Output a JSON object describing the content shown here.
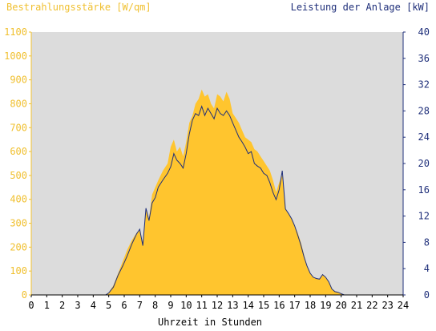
{
  "chart_data": {
    "type": "area",
    "ylabel_left": "Bestrahlungsstärke [W/qm]",
    "ylabel_right": "Leistung der Anlage [kW]",
    "xlabel": "Uhrzeit in Stunden",
    "xlim": [
      0,
      24
    ],
    "ylim_left": [
      0,
      1100
    ],
    "ylim_right": [
      0,
      40
    ],
    "x_ticks": [
      "0",
      "1",
      "2",
      "3",
      "4",
      "5",
      "6",
      "7",
      "8",
      "9",
      "10",
      "11",
      "12",
      "13",
      "14",
      "15",
      "16",
      "17",
      "18",
      "19",
      "20",
      "21",
      "22",
      "23",
      "24"
    ],
    "y_ticks_left": [
      "0",
      "100",
      "200",
      "300",
      "400",
      "500",
      "600",
      "700",
      "800",
      "900",
      "1000",
      "1100"
    ],
    "y_ticks_right": [
      "0",
      "4",
      "8",
      "12",
      "16",
      "20",
      "24",
      "28",
      "32",
      "36",
      "40"
    ],
    "grid": false,
    "colors": {
      "irradiance": "#ffc52e",
      "power": "#1f2f7a",
      "plot_bg": "#dcdcdc",
      "left_axis": "#f0c030",
      "right_axis": "#1f2f7a"
    },
    "series": [
      {
        "name": "Bestrahlungsstärke [W/qm]",
        "x": [
          0,
          4.8,
          5.0,
          5.3,
          5.6,
          5.9,
          6.2,
          6.5,
          6.8,
          7.0,
          7.2,
          7.4,
          7.6,
          7.8,
          8.0,
          8.2,
          8.5,
          8.8,
          9.0,
          9.2,
          9.4,
          9.6,
          9.8,
          10.0,
          10.2,
          10.4,
          10.6,
          10.8,
          11.0,
          11.2,
          11.4,
          11.6,
          11.8,
          12.0,
          12.2,
          12.4,
          12.6,
          12.8,
          13.0,
          13.2,
          13.4,
          13.6,
          13.8,
          14.0,
          14.2,
          14.4,
          14.6,
          14.8,
          15.0,
          15.2,
          15.4,
          15.6,
          15.8,
          16.0,
          16.2,
          16.4,
          16.6,
          16.8,
          17.0,
          17.2,
          17.4,
          17.6,
          17.8,
          18.0,
          18.2,
          18.4,
          18.6,
          18.8,
          19.0,
          19.2,
          19.4,
          19.6,
          19.8,
          20.0,
          20.2,
          20.4,
          20.6,
          24
        ],
        "values": [
          0,
          0,
          10,
          40,
          90,
          140,
          190,
          230,
          260,
          270,
          220,
          360,
          320,
          420,
          450,
          480,
          520,
          550,
          620,
          650,
          600,
          620,
          580,
          640,
          720,
          750,
          800,
          820,
          860,
          830,
          840,
          800,
          780,
          840,
          830,
          810,
          850,
          820,
          760,
          740,
          720,
          690,
          660,
          650,
          640,
          610,
          600,
          580,
          560,
          540,
          520,
          480,
          430,
          470,
          500,
          360,
          340,
          320,
          290,
          260,
          220,
          170,
          120,
          90,
          75,
          70,
          65,
          85,
          75,
          55,
          25,
          15,
          10,
          5,
          0,
          0,
          0,
          0
        ]
      },
      {
        "name": "Leistung der Anlage [kW]",
        "x": [
          0,
          4.8,
          5.0,
          5.3,
          5.6,
          5.9,
          6.2,
          6.5,
          6.8,
          7.0,
          7.2,
          7.4,
          7.6,
          7.8,
          8.0,
          8.2,
          8.5,
          8.8,
          9.0,
          9.2,
          9.4,
          9.6,
          9.8,
          10.0,
          10.2,
          10.4,
          10.6,
          10.8,
          11.0,
          11.2,
          11.4,
          11.6,
          11.8,
          12.0,
          12.2,
          12.4,
          12.6,
          12.8,
          13.0,
          13.2,
          13.4,
          13.6,
          13.8,
          14.0,
          14.2,
          14.4,
          14.6,
          14.8,
          15.0,
          15.2,
          15.4,
          15.6,
          15.8,
          16.0,
          16.2,
          16.4,
          16.6,
          16.8,
          17.0,
          17.2,
          17.4,
          17.6,
          17.8,
          18.0,
          18.2,
          18.4,
          18.6,
          18.8,
          19.0,
          19.2,
          19.4,
          19.6,
          19.8,
          20.0,
          20.2,
          20.4,
          20.6,
          24
        ],
        "values": [
          0,
          0,
          0.3,
          1.2,
          3.0,
          4.4,
          6.0,
          7.8,
          9.3,
          10.0,
          7.5,
          13.2,
          11.3,
          14.0,
          14.8,
          16.4,
          17.5,
          18.5,
          19.5,
          21.5,
          20.5,
          20.0,
          19.3,
          21.5,
          24.5,
          26.6,
          27.6,
          27.3,
          28.7,
          27.3,
          28.4,
          27.6,
          26.8,
          28.4,
          27.6,
          27.3,
          28.0,
          27.3,
          26.2,
          25.1,
          24.0,
          23.3,
          22.5,
          21.5,
          21.8,
          20.0,
          19.6,
          19.3,
          18.5,
          18.2,
          17.1,
          15.6,
          14.5,
          16.0,
          18.9,
          13.1,
          12.4,
          11.6,
          10.5,
          9.1,
          7.6,
          5.8,
          4.4,
          3.3,
          2.7,
          2.5,
          2.4,
          3.1,
          2.7,
          2.0,
          0.9,
          0.5,
          0.4,
          0.2,
          0,
          0,
          0,
          0
        ]
      }
    ]
  }
}
